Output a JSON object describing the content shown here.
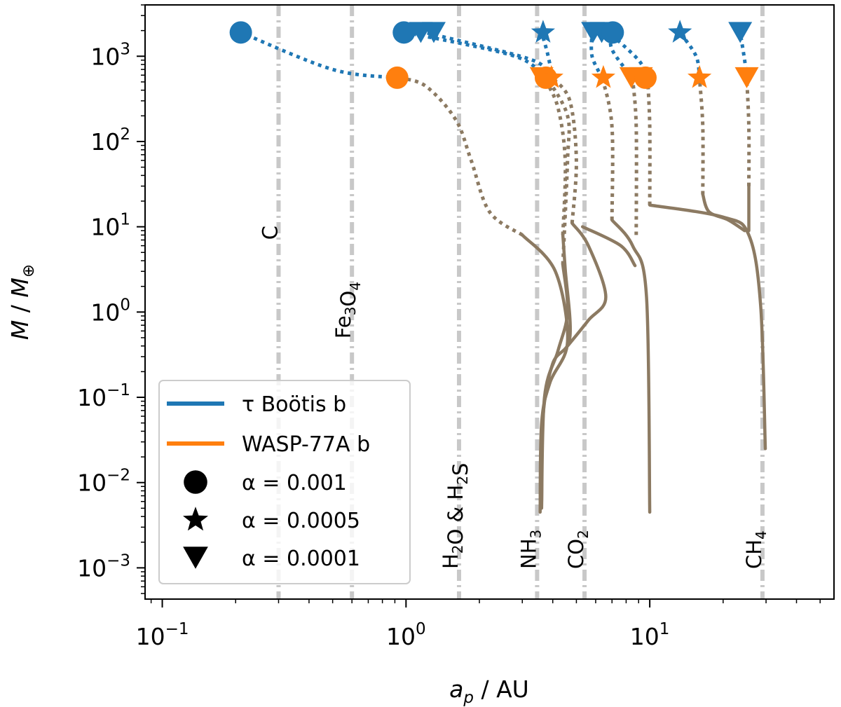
{
  "chart_data": {
    "type": "line",
    "xlabel": "a_p / AU",
    "ylabel": "M / M⊕",
    "x_scale": "log",
    "y_scale": "log",
    "xlim": [
      0.085,
      57
    ],
    "ylim": [
      0.00043,
      4000
    ],
    "x_ticks": [
      0.1,
      1,
      10
    ],
    "x_tick_labels": [
      {
        "base": "10",
        "exp": "−1"
      },
      {
        "base": "10",
        "exp": "0"
      },
      {
        "base": "10",
        "exp": "1"
      }
    ],
    "y_ticks": [
      0.001,
      0.01,
      0.1,
      1,
      10,
      100,
      1000
    ],
    "y_tick_labels": [
      {
        "base": "10",
        "exp": "−3"
      },
      {
        "base": "10",
        "exp": "−2"
      },
      {
        "base": "10",
        "exp": "−1"
      },
      {
        "base": "10",
        "exp": "0"
      },
      {
        "base": "10",
        "exp": "1"
      },
      {
        "base": "10",
        "exp": "2"
      },
      {
        "base": "10",
        "exp": "3"
      }
    ],
    "grid": false,
    "legend_position": "lower-left",
    "colors": {
      "tau_boo": "#1f77b4",
      "wasp77": "#ff7f0e",
      "growth_track": "#8c7a62",
      "ice_line": "#c8c8c8"
    },
    "ice_lines": [
      {
        "label": "C",
        "x": 0.3
      },
      {
        "label": "Fe3O4",
        "x": 0.6
      },
      {
        "label": "H2O & H2S",
        "x": 1.65
      },
      {
        "label": "NH3",
        "x": 3.45
      },
      {
        "label": "CO2",
        "x": 5.4
      },
      {
        "label": "CH4",
        "x": 29
      }
    ],
    "legend": [
      {
        "label": "τ Boötis b",
        "kind": "line",
        "color": "#1f77b4"
      },
      {
        "label": "WASP-77A b",
        "kind": "line",
        "color": "#ff7f0e"
      },
      {
        "label": "α = 0.001",
        "kind": "marker",
        "marker": "circle"
      },
      {
        "label": "α = 0.0005",
        "kind": "marker",
        "marker": "star"
      },
      {
        "label": "α = 0.0001",
        "kind": "marker",
        "marker": "triangle"
      }
    ],
    "tracks": [
      {
        "solid": [
          [
            3.55,
            0.0045
          ],
          [
            3.6,
            0.05
          ],
          [
            3.9,
            0.15
          ],
          [
            4.6,
            0.45
          ],
          [
            4.1,
            3
          ],
          [
            3.0,
            8
          ]
        ],
        "dotted": [
          [
            3.0,
            8
          ],
          [
            2.2,
            15
          ],
          [
            1.85,
            60
          ],
          [
            1.6,
            180
          ],
          [
            1.2,
            450
          ],
          [
            0.92,
            560
          ]
        ],
        "tau": [
          [
            0.92,
            560
          ],
          [
            0.5,
            700
          ],
          [
            0.21,
            1900
          ]
        ]
      },
      {
        "solid": [
          [
            3.6,
            0.006
          ],
          [
            3.65,
            0.06
          ],
          [
            4.0,
            0.25
          ],
          [
            4.7,
            0.5
          ],
          [
            4.5,
            3.2
          ],
          [
            4.4,
            8
          ]
        ],
        "dotted": [
          [
            4.4,
            8
          ],
          [
            4.5,
            60
          ],
          [
            4.2,
            250
          ],
          [
            3.7,
            550
          ]
        ],
        "tau": [
          [
            3.7,
            550
          ],
          [
            2.8,
            1000
          ],
          [
            1.0,
            1900
          ]
        ]
      },
      {
        "solid": [
          [
            3.6,
            0.005
          ],
          [
            3.7,
            0.1
          ],
          [
            4.2,
            0.35
          ],
          [
            4.6,
            1.0
          ],
          [
            4.4,
            3.6
          ]
        ],
        "dotted": [
          [
            4.4,
            3.6
          ],
          [
            4.6,
            60
          ],
          [
            4.6,
            200
          ],
          [
            3.8,
            550
          ]
        ],
        "tau": [
          [
            3.8,
            550
          ],
          [
            3.3,
            900
          ],
          [
            1.2,
            1900
          ]
        ]
      },
      {
        "solid": [
          [
            4.6,
            0.4
          ],
          [
            5.6,
            0.8
          ],
          [
            6.6,
            1.5
          ],
          [
            5.6,
            6
          ],
          [
            4.8,
            11
          ]
        ],
        "dotted": [
          [
            4.8,
            11
          ],
          [
            5.0,
            60
          ],
          [
            4.7,
            300
          ],
          [
            4.0,
            550
          ]
        ],
        "tau": [
          [
            4.0,
            550
          ],
          [
            3.8,
            1100
          ],
          [
            3.6,
            1900
          ]
        ]
      },
      {
        "solid": [
          [
            5.3,
            10
          ],
          [
            7.6,
            6
          ],
          [
            8.7,
            3.5
          ]
        ],
        "dotted": [
          [
            7.0,
            12
          ],
          [
            7.0,
            150
          ],
          [
            6.4,
            550
          ]
        ],
        "tau": [
          [
            6.4,
            550
          ],
          [
            5.8,
            1000
          ],
          [
            5.8,
            1900
          ]
        ]
      },
      {
        "solid": [
          [
            7.0,
            12
          ],
          [
            8.5,
            6
          ],
          [
            9.7,
            1.5
          ],
          [
            10.0,
            0.0045
          ]
        ],
        "dotted": [
          [
            8.8,
            8
          ],
          [
            8.8,
            150
          ],
          [
            8.5,
            550
          ]
        ],
        "tau": [
          [
            8.5,
            550
          ],
          [
            7.0,
            1200
          ],
          [
            7.0,
            1900
          ]
        ]
      },
      {
        "solid": [
          [
            10.0,
            18
          ],
          [
            20,
            13
          ],
          [
            25.5,
            8
          ],
          [
            28.5,
            1.2
          ],
          [
            29.8,
            0.025
          ]
        ],
        "dotted": [
          [
            10.0,
            18
          ],
          [
            10.0,
            150
          ],
          [
            9.8,
            550
          ]
        ],
        "tau": [
          [
            9.8,
            550
          ],
          [
            9.0,
            900
          ],
          [
            6.8,
            1900
          ]
        ]
      },
      {
        "solid": [
          [
            16.5,
            24
          ],
          [
            17.5,
            15
          ],
          [
            21,
            12
          ],
          [
            24.5,
            9
          ]
        ],
        "dotted": [
          [
            16.5,
            24
          ],
          [
            16.5,
            150
          ],
          [
            16,
            550
          ]
        ],
        "tau": [
          [
            16,
            550
          ],
          [
            15.5,
            1000
          ],
          [
            13.3,
            1900
          ]
        ]
      },
      {
        "solid": [
          [
            25.5,
            30
          ],
          [
            25.5,
            9
          ]
        ],
        "dotted": [
          [
            25.5,
            30
          ],
          [
            25.5,
            150
          ],
          [
            25,
            550
          ]
        ],
        "tau": [
          [
            25,
            550
          ],
          [
            24.5,
            900
          ],
          [
            23.5,
            1900
          ]
        ]
      }
    ],
    "markers": [
      {
        "series": "tau",
        "alpha": "0.001",
        "x": 0.21,
        "y": 1900
      },
      {
        "series": "tau",
        "alpha": "0.001",
        "x": 0.98,
        "y": 1900
      },
      {
        "series": "tau",
        "alpha": "0.0001",
        "x": 1.15,
        "y": 1900
      },
      {
        "series": "tau",
        "alpha": "0.0001",
        "x": 1.3,
        "y": 1900
      },
      {
        "series": "tau",
        "alpha": "0.0005",
        "x": 3.65,
        "y": 1900
      },
      {
        "series": "tau",
        "alpha": "0.0001",
        "x": 5.85,
        "y": 1900
      },
      {
        "series": "tau",
        "alpha": "0.0001",
        "x": 6.35,
        "y": 1900
      },
      {
        "series": "tau",
        "alpha": "0.001",
        "x": 7.05,
        "y": 1900
      },
      {
        "series": "tau",
        "alpha": "0.0005",
        "x": 13.3,
        "y": 1900
      },
      {
        "series": "tau",
        "alpha": "0.0001",
        "x": 23.5,
        "y": 1900
      },
      {
        "series": "wasp",
        "alpha": "0.001",
        "x": 0.92,
        "y": 560
      },
      {
        "series": "wasp",
        "alpha": "0.0001",
        "x": 3.6,
        "y": 560
      },
      {
        "series": "wasp",
        "alpha": "0.001",
        "x": 3.75,
        "y": 560
      },
      {
        "series": "wasp",
        "alpha": "0.0005",
        "x": 3.95,
        "y": 560
      },
      {
        "series": "wasp",
        "alpha": "0.0005",
        "x": 6.45,
        "y": 560
      },
      {
        "series": "wasp",
        "alpha": "0.0001",
        "x": 8.4,
        "y": 560
      },
      {
        "series": "wasp",
        "alpha": "0.0001",
        "x": 9.2,
        "y": 560
      },
      {
        "series": "wasp",
        "alpha": "0.001",
        "x": 9.6,
        "y": 560
      },
      {
        "series": "wasp",
        "alpha": "0.0005",
        "x": 16,
        "y": 560
      },
      {
        "series": "wasp",
        "alpha": "0.0001",
        "x": 25,
        "y": 560
      }
    ]
  }
}
